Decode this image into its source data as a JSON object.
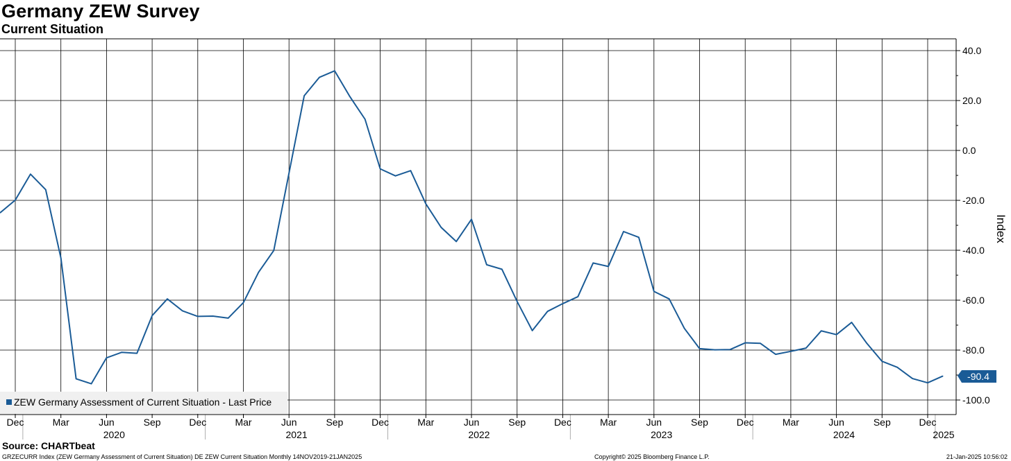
{
  "header": {
    "title": "Germany ZEW Survey",
    "subtitle": "Current Situation"
  },
  "footer": {
    "source": "Source: CHARTbeat",
    "description": "GRZECURR Index (ZEW Germany Assessment of Current Situation) DE ZEW Current Situation  Monthly 14NOV2019-21JAN2025",
    "copyright": "Copyright© 2025 Bloomberg Finance L.P.",
    "timestamp": "21-Jan-2025 10:56:02"
  },
  "colors": {
    "series": "#1a5b96",
    "grid": "#000000",
    "legend_bg": "#f0f0f0"
  },
  "chart_data": {
    "type": "line",
    "title": "Germany ZEW Survey",
    "subtitle": "Current Situation",
    "ylabel": "Index",
    "ylim": [
      -105,
      45
    ],
    "yticks": [
      "40.0",
      "20.0",
      "0.0",
      "-20.0",
      "-40.0",
      "-60.0",
      "-80.0",
      "-100.0"
    ],
    "y_axis_side": "right",
    "grid": true,
    "legend": {
      "placement": "bottom-left",
      "entry": "ZEW Germany Assessment of Current Situation - Last Price"
    },
    "last_value_label": "-90.4",
    "x_month_ticks": [
      "Dec",
      "Mar",
      "Jun",
      "Sep",
      "Dec",
      "Mar",
      "Jun",
      "Sep",
      "Dec",
      "Mar",
      "Jun",
      "Sep",
      "Dec",
      "Mar",
      "Jun",
      "Sep",
      "Dec",
      "Mar",
      "Jun",
      "Sep",
      "Dec"
    ],
    "x_year_ticks": [
      "2020",
      "2021",
      "2022",
      "2023",
      "2024",
      "2025"
    ],
    "x": [
      "2019-11",
      "2019-12",
      "2020-01",
      "2020-02",
      "2020-03",
      "2020-04",
      "2020-05",
      "2020-06",
      "2020-07",
      "2020-08",
      "2020-09",
      "2020-10",
      "2020-11",
      "2020-12",
      "2021-01",
      "2021-02",
      "2021-03",
      "2021-04",
      "2021-05",
      "2021-06",
      "2021-07",
      "2021-08",
      "2021-09",
      "2021-10",
      "2021-11",
      "2021-12",
      "2022-01",
      "2022-02",
      "2022-03",
      "2022-04",
      "2022-05",
      "2022-06",
      "2022-07",
      "2022-08",
      "2022-09",
      "2022-10",
      "2022-11",
      "2022-12",
      "2023-01",
      "2023-02",
      "2023-03",
      "2023-04",
      "2023-05",
      "2023-06",
      "2023-07",
      "2023-08",
      "2023-09",
      "2023-10",
      "2023-11",
      "2023-12",
      "2024-01",
      "2024-02",
      "2024-03",
      "2024-04",
      "2024-05",
      "2024-06",
      "2024-07",
      "2024-08",
      "2024-09",
      "2024-10",
      "2024-11",
      "2024-12",
      "2025-01"
    ],
    "series": [
      {
        "name": "ZEW Germany Assessment of Current Situation - Last Price",
        "values": [
          -25.0,
          -19.9,
          -9.5,
          -15.7,
          -43.1,
          -91.5,
          -93.5,
          -83.1,
          -80.9,
          -81.3,
          -66.2,
          -59.5,
          -64.3,
          -66.5,
          -66.4,
          -67.2,
          -61.0,
          -48.8,
          -40.1,
          -9.1,
          21.9,
          29.3,
          31.9,
          21.6,
          12.5,
          -7.4,
          -10.2,
          -8.1,
          -21.4,
          -30.8,
          -36.5,
          -27.6,
          -45.8,
          -47.6,
          -60.5,
          -72.2,
          -64.5,
          -61.4,
          -58.6,
          -45.1,
          -46.5,
          -32.5,
          -34.8,
          -56.5,
          -59.5,
          -71.3,
          -79.4,
          -79.9,
          -79.8,
          -77.1,
          -77.3,
          -81.7,
          -80.5,
          -79.2,
          -72.3,
          -73.8,
          -68.9,
          -77.3,
          -84.5,
          -86.9,
          -91.4,
          -93.1,
          -90.4
        ]
      }
    ]
  }
}
